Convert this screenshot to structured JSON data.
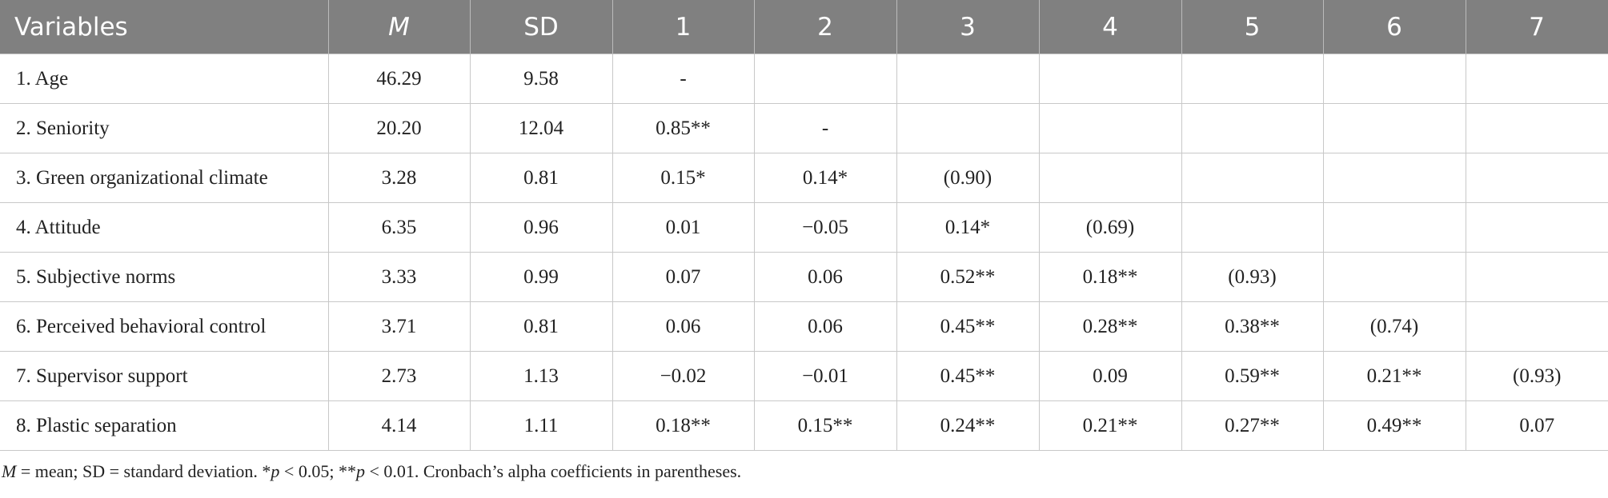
{
  "table": {
    "header": [
      "Variables",
      "M",
      "SD",
      "1",
      "2",
      "3",
      "4",
      "5",
      "6",
      "7"
    ],
    "rows": [
      [
        "1. Age",
        "46.29",
        "9.58",
        "-"
      ],
      [
        "2. Seniority",
        "20.20",
        "12.04",
        "0.85**",
        "-"
      ],
      [
        "3. Green organizational climate",
        "3.28",
        "0.81",
        "0.15*",
        "0.14*",
        "(0.90)"
      ],
      [
        "4. Attitude",
        "6.35",
        "0.96",
        "0.01",
        "−0.05",
        "0.14*",
        "(0.69)"
      ],
      [
        "5. Subjective norms",
        "3.33",
        "0.99",
        "0.07",
        "0.06",
        "0.52**",
        "0.18**",
        "(0.93)"
      ],
      [
        "6. Perceived behavioral control",
        "3.71",
        "0.81",
        "0.06",
        "0.06",
        "0.45**",
        "0.28**",
        "0.38**",
        "(0.74)"
      ],
      [
        "7. Supervisor support",
        "2.73",
        "1.13",
        "−0.02",
        "−0.01",
        "0.45**",
        "0.09",
        "0.59**",
        "0.21**",
        "(0.93)"
      ],
      [
        "8. Plastic separation",
        "4.14",
        "1.11",
        "0.18**",
        "0.15**",
        "0.24**",
        "0.21**",
        "0.27**",
        "0.49**",
        "0.07"
      ]
    ]
  },
  "footnote": [
    "M",
    " = mean; SD = standard deviation. *",
    "p",
    " < 0.05; **",
    "p",
    " < 0.01. Cronbach’s alpha coefficients in parentheses."
  ]
}
